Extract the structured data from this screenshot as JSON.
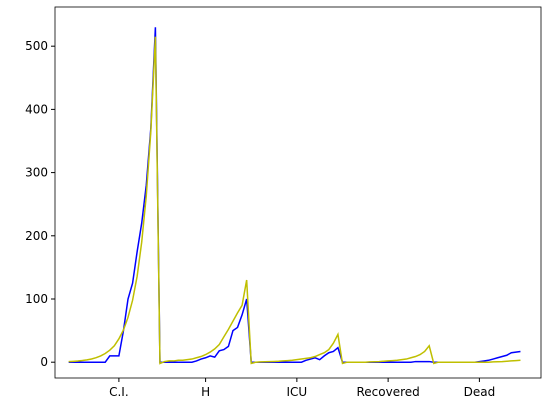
{
  "chart_data": {
    "type": "line",
    "x": [
      0,
      1,
      2,
      3,
      4,
      5,
      6,
      7,
      8,
      9,
      10,
      11,
      12,
      13,
      14,
      15,
      16,
      17,
      18,
      19,
      20,
      21,
      22,
      23,
      24,
      25,
      26,
      27,
      28,
      29,
      30,
      31,
      32,
      33,
      34,
      35,
      36,
      37,
      38,
      39,
      40,
      41,
      42,
      43,
      44,
      45,
      46,
      47,
      48,
      49,
      50,
      51,
      52,
      53,
      54,
      55,
      56,
      57,
      58,
      59,
      60,
      61,
      62,
      63,
      64,
      65,
      66,
      67,
      68,
      69,
      70,
      71,
      72,
      73,
      74,
      75,
      76,
      77,
      78,
      79,
      80,
      81,
      82,
      83,
      84,
      85,
      86,
      87,
      88,
      89,
      90,
      91,
      92,
      93,
      94,
      95,
      96,
      97,
      98,
      99
    ],
    "series": [
      {
        "color": "#0000ff",
        "values": [
          0,
          0,
          0,
          0,
          0,
          0,
          0,
          0,
          0,
          10,
          10,
          10,
          50,
          100,
          125,
          175,
          220,
          280,
          370,
          530,
          0,
          0,
          0,
          0,
          0,
          0,
          0,
          0,
          2,
          5,
          7,
          10,
          8,
          18,
          20,
          25,
          50,
          55,
          75,
          100,
          0,
          0,
          0,
          0,
          0,
          0,
          0,
          0,
          0,
          0,
          0,
          0,
          3,
          5,
          7,
          4,
          10,
          15,
          17,
          23,
          0,
          0,
          0,
          0,
          0,
          0,
          0,
          0,
          0,
          0,
          0,
          0,
          0,
          0,
          0,
          0,
          1,
          1,
          1,
          1,
          0,
          0,
          0,
          0,
          0,
          0,
          0,
          0,
          0,
          0,
          1,
          2,
          3,
          5,
          7,
          9,
          11,
          15,
          16,
          17
        ]
      },
      {
        "color": "#bfbf00",
        "values": [
          1,
          1.4,
          1.9,
          2.7,
          3.7,
          5.1,
          7.1,
          9.9,
          13.7,
          19,
          26,
          37,
          51,
          71,
          98,
          136,
          190,
          263,
          365,
          515,
          -2,
          1,
          2,
          2,
          3,
          3,
          4,
          5,
          7,
          9,
          12,
          16,
          21,
          28,
          40,
          52,
          65,
          78,
          90,
          130,
          -2,
          0,
          0.5,
          0.7,
          1,
          1.2,
          1.5,
          2,
          2.5,
          3,
          4,
          5,
          6,
          7,
          9,
          12,
          15,
          20,
          30,
          44,
          -2,
          0,
          0,
          0,
          0,
          0,
          0.5,
          0.7,
          1,
          1.5,
          2,
          2.5,
          3,
          4,
          5,
          7,
          9,
          12,
          17,
          26,
          -2,
          0,
          0,
          0,
          0,
          0,
          0,
          0,
          0,
          0,
          0,
          0,
          0,
          0.5,
          0.7,
          1,
          1.5,
          2,
          2.5,
          3
        ]
      }
    ],
    "xlim": [
      -3,
      103.5
    ],
    "ylim": [
      -25,
      562
    ],
    "xticks": [
      {
        "value": 11,
        "label": "C.I."
      },
      {
        "value": 30,
        "label": "H"
      },
      {
        "value": 50,
        "label": "ICU"
      },
      {
        "value": 70,
        "label": "Recovered"
      },
      {
        "value": 90,
        "label": "Dead"
      }
    ],
    "yticks": [
      0,
      100,
      200,
      300,
      400,
      500
    ]
  }
}
